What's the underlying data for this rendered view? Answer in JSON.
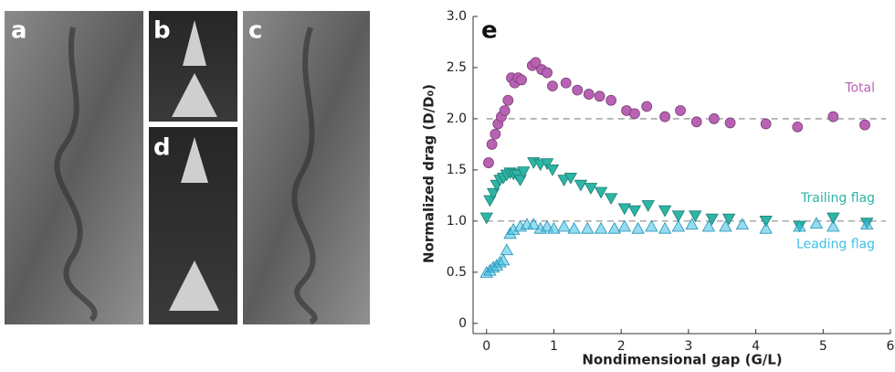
{
  "chart_data": {
    "type": "scatter",
    "panel_labels": [
      "a",
      "b",
      "c",
      "d",
      "e"
    ],
    "xlabel": "Nondimensional gap (G/L)",
    "ylabel": "Normalized drag (D/D₀)",
    "xlim": [
      -0.2,
      6
    ],
    "ylim": [
      -0.1,
      3
    ],
    "xticks": [
      0,
      1,
      2,
      3,
      4,
      5,
      6
    ],
    "yticks": [
      0,
      0.5,
      {
        "value": 1,
        "label": "1.0"
      },
      1.5,
      {
        "value": 2,
        "label": "2.0"
      },
      2.5,
      {
        "value": 3,
        "label": "3.0"
      }
    ],
    "reference_lines": [
      2,
      1
    ],
    "series": [
      {
        "name": "Total",
        "color": "#b962b3",
        "marker": "circle",
        "x": [
          0.03,
          0.08,
          0.13,
          0.17,
          0.22,
          0.27,
          0.32,
          0.37,
          0.42,
          0.47,
          0.52,
          0.68,
          0.73,
          0.82,
          0.9,
          0.98,
          1.18,
          1.35,
          1.52,
          1.68,
          1.85,
          2.08,
          2.2,
          2.38,
          2.65,
          2.88,
          3.12,
          3.38,
          3.62,
          4.15,
          4.62,
          5.15,
          5.62
        ],
        "values": [
          1.57,
          1.75,
          1.85,
          1.95,
          2.02,
          2.08,
          2.18,
          2.4,
          2.35,
          2.4,
          2.38,
          2.52,
          2.55,
          2.48,
          2.45,
          2.32,
          2.35,
          2.28,
          2.24,
          2.22,
          2.18,
          2.08,
          2.05,
          2.12,
          2.02,
          2.08,
          1.97,
          2.0,
          1.96,
          1.95,
          1.92,
          2.02,
          1.94
        ]
      },
      {
        "name": "Trailing flag",
        "color": "#2db5a5",
        "marker": "triangle-down",
        "x": [
          0.0,
          0.05,
          0.1,
          0.15,
          0.2,
          0.25,
          0.3,
          0.35,
          0.4,
          0.45,
          0.5,
          0.55,
          0.7,
          0.8,
          0.9,
          0.98,
          1.15,
          1.25,
          1.4,
          1.55,
          1.7,
          1.85,
          2.05,
          2.2,
          2.4,
          2.65,
          2.85,
          3.1,
          3.35,
          3.6,
          4.15,
          4.65,
          5.15,
          5.65
        ],
        "values": [
          1.03,
          1.2,
          1.27,
          1.35,
          1.4,
          1.42,
          1.45,
          1.47,
          1.46,
          1.45,
          1.4,
          1.48,
          1.57,
          1.55,
          1.56,
          1.5,
          1.4,
          1.42,
          1.35,
          1.32,
          1.28,
          1.22,
          1.12,
          1.1,
          1.15,
          1.1,
          1.05,
          1.05,
          1.02,
          1.02,
          1.0,
          0.95,
          1.03,
          0.98
        ]
      },
      {
        "name": "Leading flag",
        "color": "#3fc0e6",
        "marker": "triangle-up",
        "x": [
          0.0,
          0.05,
          0.1,
          0.15,
          0.2,
          0.25,
          0.3,
          0.35,
          0.4,
          0.5,
          0.6,
          0.7,
          0.8,
          0.9,
          1.0,
          1.15,
          1.3,
          1.5,
          1.7,
          1.9,
          2.05,
          2.25,
          2.45,
          2.65,
          2.85,
          3.05,
          3.3,
          3.55,
          3.8,
          4.15,
          4.65,
          4.9,
          5.15,
          5.65
        ],
        "values": [
          0.5,
          0.52,
          0.55,
          0.57,
          0.6,
          0.62,
          0.72,
          0.88,
          0.92,
          0.95,
          0.97,
          0.97,
          0.93,
          0.95,
          0.93,
          0.95,
          0.93,
          0.93,
          0.93,
          0.93,
          0.95,
          0.93,
          0.95,
          0.93,
          0.95,
          0.97,
          0.95,
          0.95,
          0.97,
          0.93,
          0.95,
          0.98,
          0.95,
          0.97
        ]
      }
    ]
  }
}
